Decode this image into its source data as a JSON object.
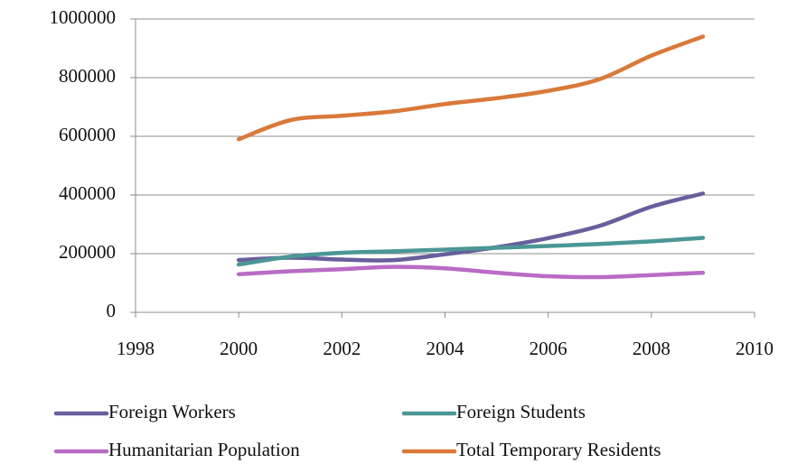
{
  "chart_data": {
    "type": "line",
    "x": [
      2000,
      2001,
      2002,
      2003,
      2004,
      2005,
      2006,
      2007,
      2008,
      2009
    ],
    "series": [
      {
        "name": "Foreign Workers",
        "color": "#675f9c",
        "values": [
          178000,
          186000,
          180000,
          178000,
          198000,
          222000,
          253000,
          295000,
          360000,
          405000
        ]
      },
      {
        "name": "Foreign Students",
        "color": "#4a9796",
        "values": [
          163000,
          190000,
          203000,
          208000,
          214000,
          220000,
          226000,
          233000,
          242000,
          254000
        ]
      },
      {
        "name": "Humanitarian Population",
        "color": "#b86cc4",
        "values": [
          130000,
          140000,
          147000,
          155000,
          150000,
          135000,
          123000,
          120000,
          127000,
          135000
        ]
      },
      {
        "name": "Total Temporary Residents",
        "color": "#d9793a",
        "values": [
          590000,
          655000,
          670000,
          685000,
          710000,
          730000,
          755000,
          795000,
          875000,
          940000
        ]
      }
    ],
    "xlim": [
      1998,
      2010
    ],
    "xticks": [
      1998,
      2000,
      2002,
      2004,
      2006,
      2008,
      2010
    ],
    "ylim": [
      0,
      1000000
    ],
    "yticks": [
      0,
      200000,
      400000,
      600000,
      800000,
      1000000
    ],
    "grid": true,
    "legend": "bottom",
    "smooth": true
  }
}
